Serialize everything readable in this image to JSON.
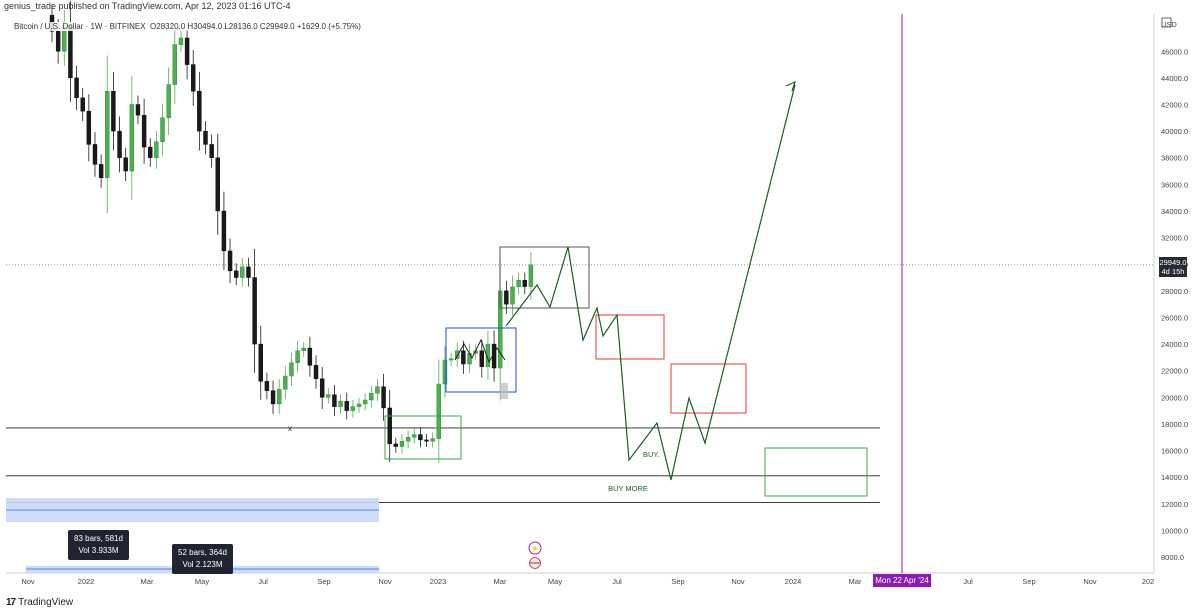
{
  "header": {
    "publisher_line": "genius_trade published on TradingView.com, Apr 12, 2023 01:16 UTC-4"
  },
  "legend": {
    "symbol": "Bitcoin / U.S. Dollar",
    "interval": "1W",
    "exchange": "BITFINEX",
    "ohlc": "O28320.0  H30494.0  L28136.0  C29949.0  +1629.0 (+5.75%)"
  },
  "price_axis": {
    "currency": "USD",
    "last_price": "29949.0",
    "countdown": "4d 15h"
  },
  "time_axis": {
    "crosshair_label": "Mon 22 Apr '24"
  },
  "annotations": {
    "buy": "BUY.",
    "buy_more": "BUY MORE",
    "cross_mark": "x"
  },
  "measure_tools": [
    {
      "bars": "83 bars, 581d",
      "vol": "Vol 3.933M"
    },
    {
      "bars": "52 bars, 364d",
      "vol": "Vol 2.123M"
    }
  ],
  "footer": {
    "brand": "TradingView"
  },
  "colors": {
    "up": "#4caf50",
    "down": "#1a1a1a",
    "projection": "#1b5e20",
    "red_box": "#e53935",
    "green_box": "#43a047",
    "blue_box": "#1e4fd8",
    "grey_box": "#555555",
    "crosshair": "#8a1bb5"
  },
  "chart_data": {
    "type": "candlestick",
    "ylim": [
      6800,
      48800
    ],
    "y_ticks": [
      8000,
      10000,
      12000,
      14000,
      16000,
      18000,
      20000,
      22000,
      24000,
      26000,
      28000,
      30000,
      32000,
      34000,
      36000,
      38000,
      40000,
      42000,
      44000,
      46000
    ],
    "y_tick_labels": [
      "8000.0",
      "10000.0",
      "12000.0",
      "14000.0",
      "16000.0",
      "18000.0",
      "20000.0",
      "22000.0",
      "24000.0",
      "26000.0",
      "28000.0",
      "30000.0",
      "32000.0",
      "34000.0",
      "36000.0",
      "38000.0",
      "40000.0",
      "42000.0",
      "44000.0",
      "46000.0"
    ],
    "x_tick_labels": [
      "Nov",
      "2022",
      "Mar",
      "May",
      "Jul",
      "Sep",
      "Nov",
      "2023",
      "Mar",
      "May",
      "Jul",
      "Sep",
      "Nov",
      "2024",
      "Mar",
      "Jul",
      "Sep",
      "Nov",
      "202"
    ],
    "candles_close": [
      47500,
      46000,
      48000,
      44000,
      42500,
      41500,
      39000,
      37500,
      36500,
      43000,
      40000,
      38000,
      37000,
      42000,
      41200,
      38800,
      38000,
      39200,
      41000,
      43500,
      46500,
      47000,
      45000,
      43000,
      40000,
      39000,
      38000,
      34000,
      31000,
      29500,
      29000,
      29800,
      29000,
      24000,
      21200,
      20500,
      19500,
      20600,
      21600,
      22600,
      23500,
      23700,
      22400,
      21400,
      20000,
      20200,
      19300,
      19700,
      19000,
      19300,
      19500,
      19800,
      20300,
      20800,
      19200,
      16500,
      16300,
      16700,
      17000,
      17200,
      16800,
      16700,
      16900,
      21000,
      22800,
      22900,
      23500,
      22500,
      23300,
      23500,
      22300,
      24000,
      22200,
      28000,
      27000,
      28300,
      28800,
      28320,
      29949
    ],
    "horizontal_levels": [
      17700,
      14100,
      12100
    ],
    "projection_path": [
      [
        28320,
        26500
      ],
      [
        29949,
        30800
      ],
      [
        24000,
        26000
      ],
      [
        24700,
        26000
      ],
      [
        15300,
        17700
      ],
      [
        13600,
        19600
      ],
      [
        16500,
        43300
      ]
    ]
  }
}
